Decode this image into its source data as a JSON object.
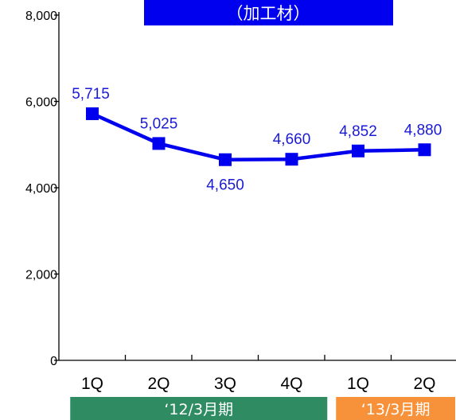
{
  "chart_data": {
    "type": "line",
    "title": "（加工材）",
    "categories": [
      "1Q",
      "2Q",
      "3Q",
      "4Q",
      "1Q",
      "2Q"
    ],
    "series": [
      {
        "values": [
          5715,
          5025,
          4650,
          4660,
          4852,
          4880
        ]
      }
    ],
    "data_labels": [
      "5,715",
      "5,025",
      "4,650",
      "4,660",
      "4,852",
      "4,880"
    ],
    "y_ticks": [
      {
        "value": 0,
        "label": "0"
      },
      {
        "value": 2000,
        "label": "2,000"
      },
      {
        "value": 4000,
        "label": "4,000"
      },
      {
        "value": 6000,
        "label": "6,000"
      },
      {
        "value": 8000,
        "label": "8,000"
      }
    ],
    "ylim": [
      0,
      8000
    ],
    "grid": false,
    "periods": [
      {
        "label": "‘12/3月期",
        "categories": [
          0,
          1,
          2,
          3
        ],
        "color": "#2e8b62"
      },
      {
        "label": "‘13/3月期",
        "categories": [
          4,
          5
        ],
        "color": "#f7923a"
      }
    ],
    "colors": {
      "line": "#0000ee",
      "marker": "#0000ee",
      "data_label": "#1a1ad6",
      "title_bg": "#0000ee"
    }
  }
}
